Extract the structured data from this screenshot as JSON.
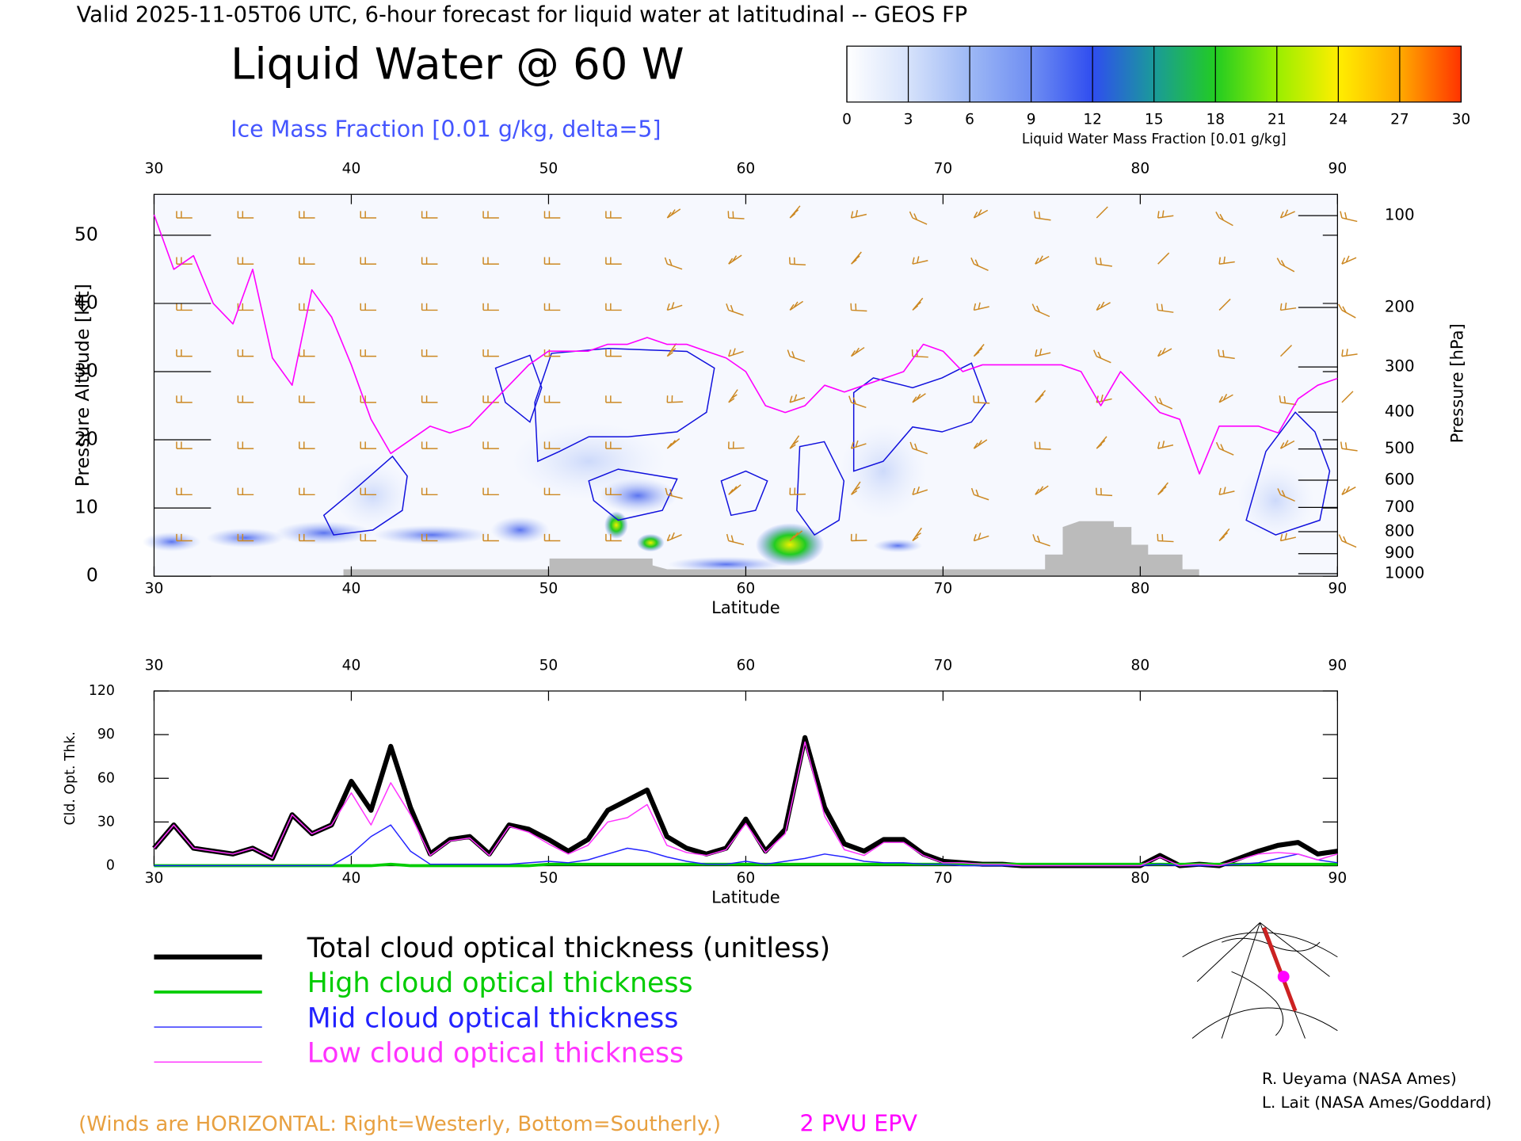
{
  "header": {
    "valid": "Valid 2025-11-05T06 UTC, 6-hour forecast for liquid water at latitudinal -- GEOS FP",
    "credits": [
      "R. Ueyama (NASA Ames)",
      "L. Lait (NASA Ames/Goddard)"
    ]
  },
  "colorbar": {
    "ticks": [
      0,
      3,
      6,
      9,
      12,
      15,
      18,
      21,
      24,
      27,
      30
    ],
    "colors": [
      "#ffffff",
      "#d6e2fb",
      "#9db8f5",
      "#6f8ef2",
      "#2f4df0",
      "#1a9a9a",
      "#22cc22",
      "#99ee00",
      "#ffee00",
      "#ffaa00",
      "#ff3300"
    ],
    "label": "Liquid Water Mass Fraction [0.01 g/kg]"
  },
  "chart_data": [
    {
      "type": "line",
      "title": "Liquid Water @ 60 W",
      "subtitle": "Ice Mass Fraction [0.01 g/kg, delta=5]",
      "x_label": "Latitude",
      "y_label": "Pressure Altitude [kft]",
      "y2_label": "Pressure [hPa]",
      "x": [
        30,
        31,
        32,
        33,
        34,
        35,
        36,
        37,
        38,
        39,
        40,
        41,
        42,
        43,
        44,
        45,
        46,
        47,
        48,
        49,
        50,
        51,
        52,
        53,
        54,
        55,
        56,
        57,
        58,
        59,
        60,
        61,
        62,
        63,
        64,
        65,
        66,
        67,
        68,
        69,
        70,
        71,
        72,
        73,
        74,
        75,
        76,
        77,
        78,
        79,
        80,
        81,
        82,
        83,
        84,
        85,
        86,
        87,
        88,
        89,
        90
      ],
      "xlim": [
        30,
        90
      ],
      "xticks": [
        30,
        40,
        50,
        60,
        70,
        80,
        90
      ],
      "ylim": [
        0,
        56
      ],
      "yticks": [
        0,
        10,
        20,
        30,
        40,
        50
      ],
      "y2scale": "standard-atmosphere",
      "y2lim": [
        1013,
        84
      ],
      "y2ticks": [
        100,
        200,
        300,
        400,
        500,
        600,
        700,
        800,
        900,
        1000
      ],
      "series": [
        {
          "name": "2 PVU EPV",
          "color": "#ff00ff",
          "width": 1.3,
          "values": [
            53,
            45,
            47,
            40,
            37,
            45,
            32,
            28,
            42,
            38,
            31,
            23,
            18,
            20,
            22,
            21,
            22,
            25,
            28,
            31,
            33,
            33,
            33,
            34,
            34,
            35,
            34,
            34,
            33,
            32,
            30,
            25,
            24,
            25,
            28,
            27,
            28,
            29,
            30,
            34,
            33,
            30,
            31,
            31,
            31,
            31,
            31,
            30,
            25,
            30,
            27,
            24,
            23,
            15,
            22,
            22,
            22,
            21,
            26,
            28,
            29
          ]
        }
      ],
      "annotations": [
        "(Winds are HORIZONTAL: Right=Westerly, Bottom=Southerly.)"
      ]
    },
    {
      "type": "line",
      "x_label": "Latitude",
      "y_label": "Cld. Opt. Thk.",
      "x": [
        30,
        31,
        32,
        33,
        34,
        35,
        36,
        37,
        38,
        39,
        40,
        41,
        42,
        43,
        44,
        45,
        46,
        47,
        48,
        49,
        50,
        51,
        52,
        53,
        54,
        55,
        56,
        57,
        58,
        59,
        60,
        61,
        62,
        63,
        64,
        65,
        66,
        67,
        68,
        69,
        70,
        71,
        72,
        73,
        74,
        75,
        76,
        77,
        78,
        79,
        80,
        81,
        82,
        83,
        84,
        85,
        86,
        87,
        88,
        89,
        90
      ],
      "xlim": [
        30,
        90
      ],
      "xticks": [
        30,
        40,
        50,
        60,
        70,
        80,
        90
      ],
      "ylim": [
        0,
        120
      ],
      "yticks": [
        0,
        30,
        60,
        90,
        120
      ],
      "series": [
        {
          "name": "Total cloud optical thickness (unitless)",
          "color": "#000000",
          "width": 5,
          "values": [
            12,
            28,
            12,
            10,
            8,
            12,
            5,
            35,
            22,
            28,
            58,
            38,
            82,
            40,
            8,
            18,
            20,
            8,
            28,
            25,
            18,
            10,
            18,
            38,
            45,
            52,
            20,
            12,
            8,
            12,
            32,
            10,
            25,
            88,
            40,
            15,
            10,
            18,
            18,
            8,
            3,
            2,
            1,
            1,
            0,
            0,
            0,
            0,
            0,
            0,
            0,
            7,
            0,
            1,
            0,
            5,
            10,
            14,
            16,
            8,
            10
          ]
        },
        {
          "name": "High cloud optical thickness",
          "color": "#00cc00",
          "width": 3,
          "values": [
            0,
            0,
            0,
            0,
            0,
            0,
            0,
            0,
            0,
            0,
            0,
            0,
            1,
            0,
            0,
            0,
            0,
            0,
            0,
            0,
            1,
            1,
            1,
            1,
            1,
            1,
            1,
            1,
            1,
            1,
            1,
            1,
            1,
            1,
            1,
            1,
            1,
            1,
            1,
            1,
            1,
            1,
            1,
            1,
            1,
            1,
            1,
            1,
            1,
            1,
            1,
            1,
            1,
            1,
            1,
            1,
            1,
            1,
            1,
            1,
            1
          ]
        },
        {
          "name": "Mid cloud optical thickness",
          "color": "#2222ff",
          "width": 1.2,
          "values": [
            0,
            0,
            0,
            0,
            0,
            0,
            0,
            0,
            0,
            0,
            8,
            20,
            28,
            10,
            1,
            1,
            1,
            1,
            1,
            2,
            3,
            2,
            4,
            8,
            12,
            10,
            6,
            3,
            1,
            1,
            3,
            1,
            3,
            5,
            8,
            6,
            3,
            2,
            2,
            1,
            1,
            0,
            0,
            0,
            0,
            0,
            0,
            0,
            0,
            0,
            0,
            1,
            0,
            0,
            0,
            1,
            2,
            5,
            8,
            4,
            2
          ]
        },
        {
          "name": "Low cloud optical thickness",
          "color": "#ff33ff",
          "width": 1.2,
          "values": [
            12,
            28,
            12,
            10,
            8,
            12,
            5,
            35,
            22,
            28,
            50,
            28,
            57,
            35,
            7,
            17,
            19,
            7,
            27,
            23,
            15,
            8,
            14,
            30,
            33,
            42,
            14,
            9,
            7,
            11,
            29,
            9,
            22,
            85,
            34,
            11,
            7,
            16,
            16,
            7,
            2,
            2,
            1,
            1,
            0,
            0,
            0,
            0,
            0,
            0,
            0,
            6,
            0,
            1,
            0,
            4,
            8,
            9,
            8,
            4,
            8
          ]
        }
      ]
    }
  ]
}
